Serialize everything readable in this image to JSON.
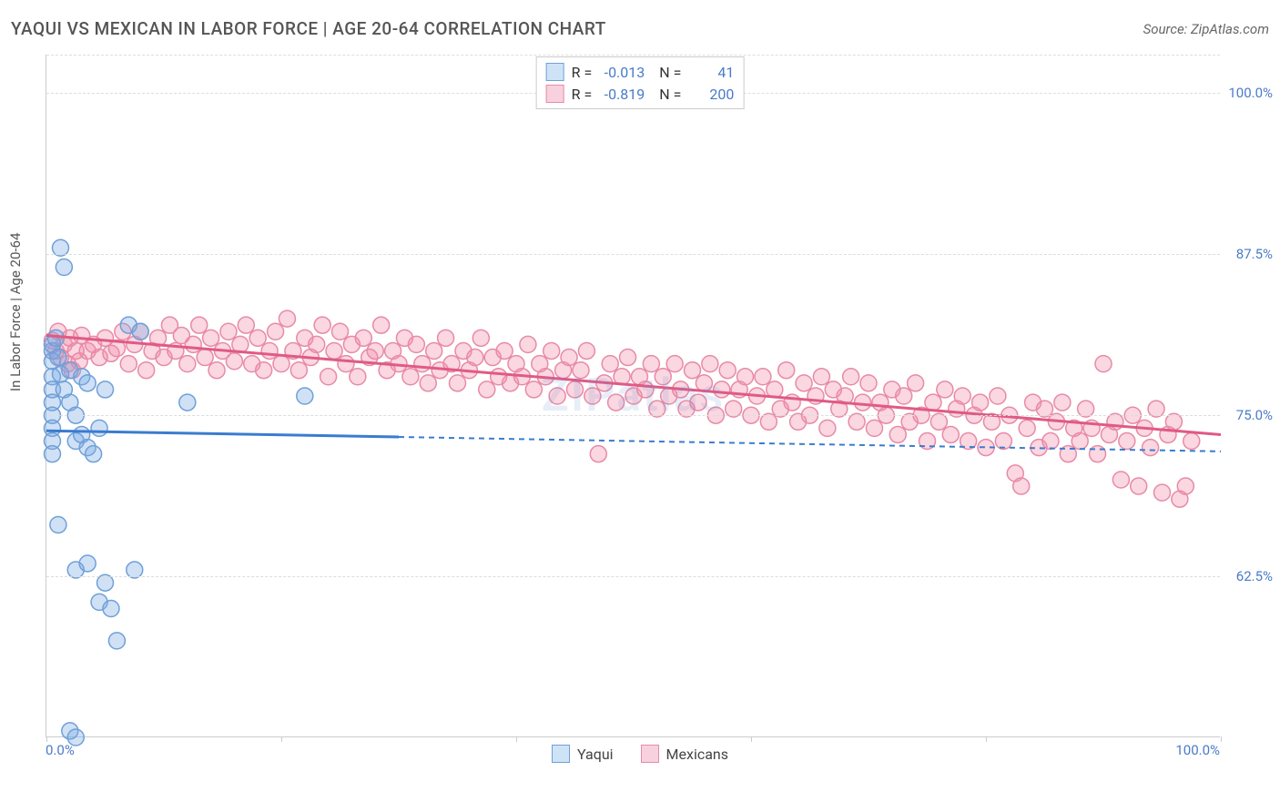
{
  "header": {
    "title": "YAQUI VS MEXICAN IN LABOR FORCE | AGE 20-64 CORRELATION CHART",
    "source": "Source: ZipAtlas.com"
  },
  "watermark": "ZIPatlas",
  "chart": {
    "type": "scatter",
    "ylabel": "In Labor Force | Age 20-64",
    "xlim": [
      0,
      100
    ],
    "ylim": [
      50,
      103
    ],
    "y_ticks": [
      62.5,
      75.0,
      87.5,
      100.0
    ],
    "y_tick_labels": [
      "62.5%",
      "75.0%",
      "87.5%",
      "100.0%"
    ],
    "x_tick_positions": [
      0,
      20,
      40,
      60,
      80,
      100
    ],
    "x_axis_labels": {
      "min": "0.0%",
      "max": "100.0%"
    },
    "background_color": "#ffffff",
    "grid_color": "#dddddd",
    "axis_color": "#cccccc",
    "marker_radius": 9,
    "marker_stroke_width": 1.5,
    "series": {
      "yaqui": {
        "label": "Yaqui",
        "R": "-0.013",
        "N": "41",
        "fill": "rgba(120,170,230,0.35)",
        "stroke": "#6fa0d8",
        "swatch_fill": "#cfe3f7",
        "swatch_border": "#6fa0d8",
        "trend": {
          "y_at_x0": 73.8,
          "y_at_x100": 72.2,
          "solid_until_x": 30,
          "color": "#3a7cd0",
          "width": 3
        },
        "points": [
          [
            0.5,
            80.0
          ],
          [
            0.5,
            79.2
          ],
          [
            0.5,
            78.0
          ],
          [
            0.5,
            77.0
          ],
          [
            0.5,
            76.0
          ],
          [
            0.5,
            75.0
          ],
          [
            0.5,
            74.0
          ],
          [
            0.5,
            73.0
          ],
          [
            0.5,
            72.0
          ],
          [
            0.5,
            80.5
          ],
          [
            1.2,
            88.0
          ],
          [
            1.5,
            86.5
          ],
          [
            1.0,
            79.5
          ],
          [
            1.2,
            78.2
          ],
          [
            1.5,
            77.0
          ],
          [
            2.0,
            78.5
          ],
          [
            2.0,
            76.0
          ],
          [
            2.5,
            75.0
          ],
          [
            2.5,
            73.0
          ],
          [
            3.0,
            78.0
          ],
          [
            3.5,
            77.5
          ],
          [
            3.0,
            73.5
          ],
          [
            3.5,
            72.5
          ],
          [
            4.0,
            72.0
          ],
          [
            4.5,
            74.0
          ],
          [
            5.0,
            77.0
          ],
          [
            7.0,
            82.0
          ],
          [
            8.0,
            81.5
          ],
          [
            12.0,
            76.0
          ],
          [
            22.0,
            76.5
          ],
          [
            1.0,
            66.5
          ],
          [
            2.5,
            63.0
          ],
          [
            3.5,
            63.5
          ],
          [
            5.0,
            62.0
          ],
          [
            7.5,
            63.0
          ],
          [
            4.5,
            60.5
          ],
          [
            5.5,
            60.0
          ],
          [
            6.0,
            57.5
          ],
          [
            2.0,
            50.5
          ],
          [
            2.5,
            50.0
          ],
          [
            0.8,
            81.0
          ]
        ]
      },
      "mexicans": {
        "label": "Mexicans",
        "R": "-0.819",
        "N": "200",
        "fill": "rgba(240,140,170,0.35)",
        "stroke": "#e88aa8",
        "swatch_fill": "#f7d2de",
        "swatch_border": "#e88aa8",
        "trend": {
          "y_at_x0": 81.2,
          "y_at_x100": 73.5,
          "solid_until_x": 100,
          "color": "#e05a85",
          "width": 3
        },
        "points": [
          [
            0.5,
            80.8
          ],
          [
            0.8,
            80.0
          ],
          [
            1.0,
            81.5
          ],
          [
            1.2,
            79.5
          ],
          [
            1.5,
            80.5
          ],
          [
            1.8,
            79.0
          ],
          [
            2.0,
            81.0
          ],
          [
            2.2,
            78.5
          ],
          [
            2.5,
            80.0
          ],
          [
            2.8,
            79.2
          ],
          [
            3.0,
            81.2
          ],
          [
            3.5,
            80.0
          ],
          [
            4.0,
            80.5
          ],
          [
            4.5,
            79.5
          ],
          [
            5.0,
            81.0
          ],
          [
            5.5,
            79.8
          ],
          [
            6.0,
            80.2
          ],
          [
            6.5,
            81.5
          ],
          [
            7.0,
            79.0
          ],
          [
            7.5,
            80.5
          ],
          [
            8.0,
            81.5
          ],
          [
            8.5,
            78.5
          ],
          [
            9.0,
            80.0
          ],
          [
            9.5,
            81.0
          ],
          [
            10.0,
            79.5
          ],
          [
            10.5,
            82.0
          ],
          [
            11.0,
            80.0
          ],
          [
            11.5,
            81.2
          ],
          [
            12.0,
            79.0
          ],
          [
            12.5,
            80.5
          ],
          [
            13.0,
            82.0
          ],
          [
            13.5,
            79.5
          ],
          [
            14.0,
            81.0
          ],
          [
            14.5,
            78.5
          ],
          [
            15.0,
            80.0
          ],
          [
            15.5,
            81.5
          ],
          [
            16.0,
            79.2
          ],
          [
            16.5,
            80.5
          ],
          [
            17.0,
            82.0
          ],
          [
            17.5,
            79.0
          ],
          [
            18.0,
            81.0
          ],
          [
            18.5,
            78.5
          ],
          [
            19.0,
            80.0
          ],
          [
            19.5,
            81.5
          ],
          [
            20.0,
            79.0
          ],
          [
            20.5,
            82.5
          ],
          [
            21.0,
            80.0
          ],
          [
            21.5,
            78.5
          ],
          [
            22.0,
            81.0
          ],
          [
            22.5,
            79.5
          ],
          [
            23.0,
            80.5
          ],
          [
            23.5,
            82.0
          ],
          [
            24.0,
            78.0
          ],
          [
            24.5,
            80.0
          ],
          [
            25.0,
            81.5
          ],
          [
            25.5,
            79.0
          ],
          [
            26.0,
            80.5
          ],
          [
            26.5,
            78.0
          ],
          [
            27.0,
            81.0
          ],
          [
            27.5,
            79.5
          ],
          [
            28.0,
            80.0
          ],
          [
            28.5,
            82.0
          ],
          [
            29.0,
            78.5
          ],
          [
            29.5,
            80.0
          ],
          [
            30.0,
            79.0
          ],
          [
            30.5,
            81.0
          ],
          [
            31.0,
            78.0
          ],
          [
            31.5,
            80.5
          ],
          [
            32.0,
            79.0
          ],
          [
            32.5,
            77.5
          ],
          [
            33.0,
            80.0
          ],
          [
            33.5,
            78.5
          ],
          [
            34.0,
            81.0
          ],
          [
            34.5,
            79.0
          ],
          [
            35.0,
            77.5
          ],
          [
            35.5,
            80.0
          ],
          [
            36.0,
            78.5
          ],
          [
            36.5,
            79.5
          ],
          [
            37.0,
            81.0
          ],
          [
            37.5,
            77.0
          ],
          [
            38.0,
            79.5
          ],
          [
            38.5,
            78.0
          ],
          [
            39.0,
            80.0
          ],
          [
            39.5,
            77.5
          ],
          [
            40.0,
            79.0
          ],
          [
            40.5,
            78.0
          ],
          [
            41.0,
            80.5
          ],
          [
            41.5,
            77.0
          ],
          [
            42.0,
            79.0
          ],
          [
            42.5,
            78.0
          ],
          [
            43.0,
            80.0
          ],
          [
            43.5,
            76.5
          ],
          [
            44.0,
            78.5
          ],
          [
            44.5,
            79.5
          ],
          [
            45.0,
            77.0
          ],
          [
            45.5,
            78.5
          ],
          [
            46.0,
            80.0
          ],
          [
            46.5,
            76.5
          ],
          [
            47.0,
            72.0
          ],
          [
            47.5,
            77.5
          ],
          [
            48.0,
            79.0
          ],
          [
            48.5,
            76.0
          ],
          [
            49.0,
            78.0
          ],
          [
            49.5,
            79.5
          ],
          [
            50.0,
            76.5
          ],
          [
            50.5,
            78.0
          ],
          [
            51.0,
            77.0
          ],
          [
            51.5,
            79.0
          ],
          [
            52.0,
            75.5
          ],
          [
            52.5,
            78.0
          ],
          [
            53.0,
            76.5
          ],
          [
            53.5,
            79.0
          ],
          [
            54.0,
            77.0
          ],
          [
            54.5,
            75.5
          ],
          [
            55.0,
            78.5
          ],
          [
            55.5,
            76.0
          ],
          [
            56.0,
            77.5
          ],
          [
            56.5,
            79.0
          ],
          [
            57.0,
            75.0
          ],
          [
            57.5,
            77.0
          ],
          [
            58.0,
            78.5
          ],
          [
            58.5,
            75.5
          ],
          [
            59.0,
            77.0
          ],
          [
            59.5,
            78.0
          ],
          [
            60.0,
            75.0
          ],
          [
            60.5,
            76.5
          ],
          [
            61.0,
            78.0
          ],
          [
            61.5,
            74.5
          ],
          [
            62.0,
            77.0
          ],
          [
            62.5,
            75.5
          ],
          [
            63.0,
            78.5
          ],
          [
            63.5,
            76.0
          ],
          [
            64.0,
            74.5
          ],
          [
            64.5,
            77.5
          ],
          [
            65.0,
            75.0
          ],
          [
            65.5,
            76.5
          ],
          [
            66.0,
            78.0
          ],
          [
            66.5,
            74.0
          ],
          [
            67.0,
            77.0
          ],
          [
            67.5,
            75.5
          ],
          [
            68.0,
            76.5
          ],
          [
            68.5,
            78.0
          ],
          [
            69.0,
            74.5
          ],
          [
            69.5,
            76.0
          ],
          [
            70.0,
            77.5
          ],
          [
            70.5,
            74.0
          ],
          [
            71.0,
            76.0
          ],
          [
            71.5,
            75.0
          ],
          [
            72.0,
            77.0
          ],
          [
            72.5,
            73.5
          ],
          [
            73.0,
            76.5
          ],
          [
            73.5,
            74.5
          ],
          [
            74.0,
            77.5
          ],
          [
            74.5,
            75.0
          ],
          [
            75.0,
            73.0
          ],
          [
            75.5,
            76.0
          ],
          [
            76.0,
            74.5
          ],
          [
            76.5,
            77.0
          ],
          [
            77.0,
            73.5
          ],
          [
            77.5,
            75.5
          ],
          [
            78.0,
            76.5
          ],
          [
            78.5,
            73.0
          ],
          [
            79.0,
            75.0
          ],
          [
            79.5,
            76.0
          ],
          [
            80.0,
            72.5
          ],
          [
            80.5,
            74.5
          ],
          [
            81.0,
            76.5
          ],
          [
            81.5,
            73.0
          ],
          [
            82.0,
            75.0
          ],
          [
            82.5,
            70.5
          ],
          [
            83.0,
            69.5
          ],
          [
            83.5,
            74.0
          ],
          [
            84.0,
            76.0
          ],
          [
            84.5,
            72.5
          ],
          [
            85.0,
            75.5
          ],
          [
            85.5,
            73.0
          ],
          [
            86.0,
            74.5
          ],
          [
            86.5,
            76.0
          ],
          [
            87.0,
            72.0
          ],
          [
            87.5,
            74.0
          ],
          [
            88.0,
            73.0
          ],
          [
            88.5,
            75.5
          ],
          [
            89.0,
            74.0
          ],
          [
            89.5,
            72.0
          ],
          [
            90.0,
            79.0
          ],
          [
            90.5,
            73.5
          ],
          [
            91.0,
            74.5
          ],
          [
            91.5,
            70.0
          ],
          [
            92.0,
            73.0
          ],
          [
            92.5,
            75.0
          ],
          [
            93.0,
            69.5
          ],
          [
            93.5,
            74.0
          ],
          [
            94.0,
            72.5
          ],
          [
            94.5,
            75.5
          ],
          [
            95.0,
            69.0
          ],
          [
            95.5,
            73.5
          ],
          [
            96.0,
            74.5
          ],
          [
            96.5,
            68.5
          ],
          [
            97.0,
            69.5
          ],
          [
            97.5,
            73.0
          ]
        ]
      }
    }
  }
}
